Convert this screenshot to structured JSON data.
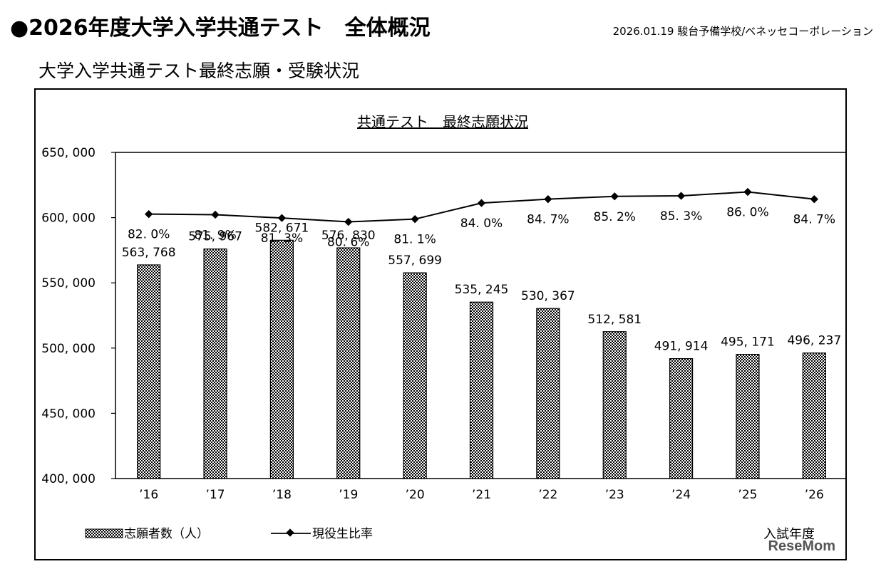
{
  "header": {
    "title": "●2026年度大学入学共通テスト　全体概況",
    "source": "2026.01.19 駿台予備学校/ベネッセコーポレーション"
  },
  "section_title": "大学入学共通テスト最終志願・受験状況",
  "watermark": "ReseMom",
  "chart_data": {
    "type": "bar",
    "title": "共通テスト　最終志願状況",
    "xlabel": "入試年度",
    "categories": [
      "’16",
      "’17",
      "’18",
      "’19",
      "’20",
      "’21",
      "’22",
      "’23",
      "’24",
      "’25",
      "’26"
    ],
    "series": [
      {
        "name": "志願者数（人）",
        "type": "bar",
        "values": [
          563768,
          575967,
          582671,
          576830,
          557699,
          535245,
          530367,
          512581,
          491914,
          495171,
          496237
        ],
        "labels": [
          "563, 768",
          "575, 967",
          "582, 671",
          "576, 830",
          "557, 699",
          "535, 245",
          "530, 367",
          "512, 581",
          "491, 914",
          "495, 171",
          "496, 237"
        ]
      },
      {
        "name": "現役生比率",
        "type": "line",
        "values": [
          82.0,
          81.9,
          81.3,
          80.6,
          81.1,
          84.0,
          84.7,
          85.2,
          85.3,
          86.0,
          84.7
        ],
        "labels": [
          "82. 0%",
          "81. 9%",
          "81. 3%",
          "80. 6%",
          "81. 1%",
          "84. 0%",
          "84. 7%",
          "85. 2%",
          "85. 3%",
          "86. 0%",
          "84. 7%"
        ]
      }
    ],
    "ylim": [
      400000,
      650000
    ],
    "yticks": [
      400000,
      450000,
      500000,
      550000,
      600000,
      650000
    ],
    "ytick_labels": [
      "400, 000",
      "450, 000",
      "500, 000",
      "550, 000",
      "600, 000",
      "650, 000"
    ],
    "legend_position": "bottom-left",
    "grid": false,
    "colors": {
      "bar_dark": "#000000",
      "bar_light": "#ffffff",
      "line": "#000000"
    }
  }
}
